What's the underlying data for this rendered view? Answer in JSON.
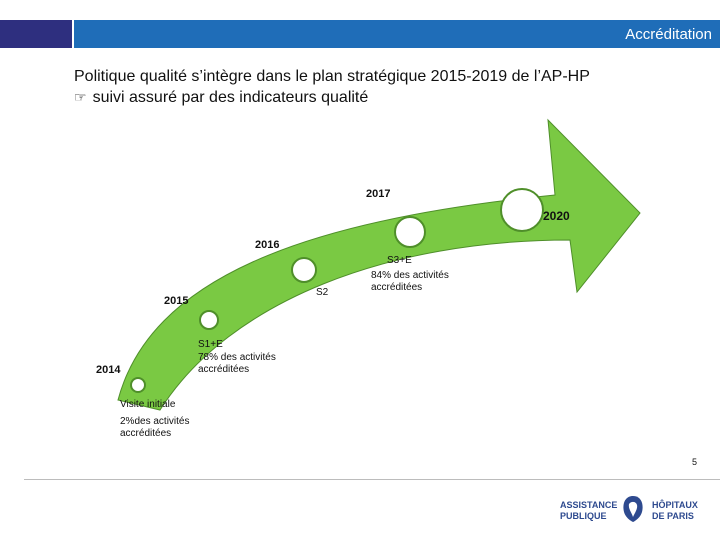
{
  "header": {
    "title": "Accréditation"
  },
  "heading": {
    "line1": "Politique qualité s’intègre dans le plan stratégique 2015-2019 de l’AP-HP",
    "arrow": "☞",
    "line2": "suivi assuré par des indicateurs qualité"
  },
  "timeline": {
    "years": [
      "2014",
      "2015",
      "2016",
      "2017",
      "2020"
    ],
    "milestones": [
      {
        "year": "2014",
        "title": "Visite initiale",
        "detail": "2%des activités accréditées"
      },
      {
        "year": "2015",
        "title": "S1+E",
        "detail": "78% des activités accréditées"
      },
      {
        "year": "2016",
        "title": "S2",
        "detail": ""
      },
      {
        "year": "2017",
        "title": "S3+E",
        "detail": "84% des activités accréditées"
      },
      {
        "year": "2020",
        "title": "",
        "detail": ""
      }
    ]
  },
  "footer": {
    "page_number": "5",
    "logo_left_line1": "ASSISTANCE",
    "logo_left_line2": "PUBLIQUE",
    "logo_right_line1": "HÔPITAUX",
    "logo_right_line2": "DE PARIS"
  },
  "colors": {
    "arrow_fill": "#7ac943",
    "arrow_stroke": "#4f8f2a",
    "header_blue": "#1f6db8",
    "header_dark": "#2e2f7f",
    "logo_blue": "#2e4a8f"
  }
}
